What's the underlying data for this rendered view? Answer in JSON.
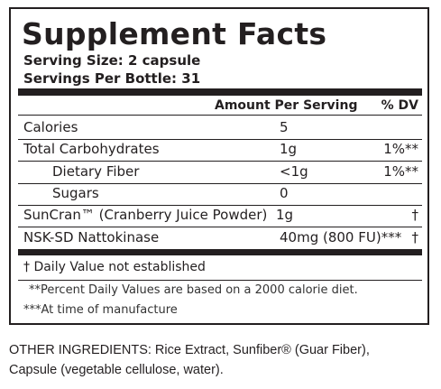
{
  "title": "Supplement Facts",
  "serving_size": "Serving Size: 2 capsule",
  "servings": "Servings Per Bottle: 31",
  "header": {
    "amount": "Amount Per Serving",
    "dv": "% DV"
  },
  "rows": [
    {
      "name": "Calories",
      "amount": "5"
    },
    {
      "name": "Total Carbohydrates",
      "amount": "1g",
      "dv": "1%**"
    },
    {
      "name": "Dietary Fiber",
      "amount": "<1g",
      "dv": "1%**",
      "indent": true
    },
    {
      "name": "Sugars",
      "amount": "0",
      "indent": true
    },
    {
      "name": "SunCran™ (Cranberry Juice Powder)",
      "amount": "1g",
      "dv": "†"
    },
    {
      "name": "NSK-SD Nattokinase",
      "amount": "40mg (800 FU)***",
      "dv": "†"
    }
  ],
  "footnotes": [
    "† Daily Value not established",
    "**Percent Daily Values are based on a 2000 calorie diet.",
    "***At time of manufacture"
  ],
  "other_ingredients": [
    "OTHER INGREDIENTS: Rice Extract, Sunfiber® (Guar Fiber),",
    "Capsule (vegetable cellulose, water)."
  ]
}
